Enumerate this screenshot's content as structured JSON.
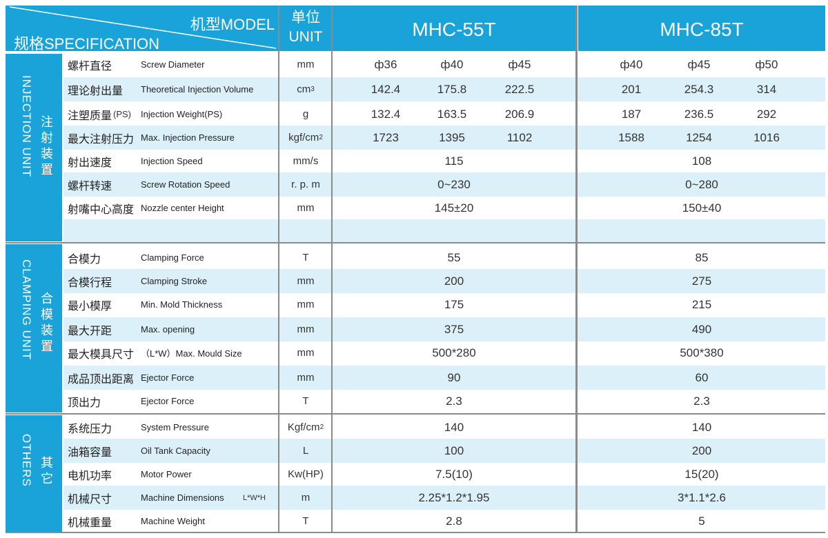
{
  "header": {
    "model_label": "机型MODEL",
    "spec_label": "规格SPECIFICATION",
    "unit_cn": "单位",
    "unit_en": "UNIT",
    "models": [
      "MHC-55T",
      "MHC-85T"
    ]
  },
  "sections": [
    {
      "cn": "注射装置",
      "en": "INJECTION UNIT"
    },
    {
      "cn": "合模装置",
      "en": "CLAMPING UNIT"
    },
    {
      "cn": "其它",
      "en": "OTHERS"
    }
  ],
  "rows": [
    {
      "cn": "螺杆直径",
      "en": "Screw  Diameter",
      "unit": "mm",
      "a": [
        "ф36",
        "ф40",
        "ф45"
      ],
      "b": [
        "ф40",
        "ф45",
        "ф50"
      ]
    },
    {
      "cn": "理论射出量",
      "en": "Theoretical  Injection  Volume",
      "unit": "cm",
      "unit_sup": "3",
      "a": [
        "142.4",
        "175.8",
        "222.5"
      ],
      "b": [
        "201",
        "254.3",
        "314"
      ]
    },
    {
      "cn": "注塑质量",
      "en": "Injection  Weight(PS)",
      "cn_suffix": "(PS)",
      "unit": "g",
      "a": [
        "132.4",
        "163.5",
        "206.9"
      ],
      "b": [
        "187",
        "236.5",
        "292"
      ]
    },
    {
      "cn": "最大注射压力",
      "en": "Max. Injection  Pressure",
      "unit": "kgf/cm",
      "unit_sup": "2",
      "a": [
        "1723",
        "1395",
        "1102"
      ],
      "b": [
        "1588",
        "1254",
        "1016"
      ]
    },
    {
      "cn": "射出速度",
      "en": "Injection  Speed",
      "unit": "mm/s",
      "a1": "115",
      "b1": "108"
    },
    {
      "cn": "螺杆转速",
      "en": "Screw  Rotation  Speed",
      "unit": "r. p. m",
      "a1": "0~230",
      "b1": "0~280"
    },
    {
      "cn": "射嘴中心高度",
      "en": "Nozzle center Height",
      "unit": "mm",
      "a1": "145±20",
      "b1": "150±40"
    },
    {
      "cn": "",
      "en": "",
      "unit": "",
      "a1": "",
      "b1": ""
    },
    {
      "cn": "合模力",
      "en": "Clamping Force",
      "unit": "T",
      "a1": "55",
      "b1": "85"
    },
    {
      "cn": "合模行程",
      "en": "Clamping Stroke",
      "unit": "mm",
      "a1": "200",
      "b1": "275"
    },
    {
      "cn": "最小模厚",
      "en": "Min. Mold Thickness",
      "unit": "mm",
      "a1": "175",
      "b1": "215"
    },
    {
      "cn": "最大开距",
      "en": "Max. opening",
      "unit": "mm",
      "a1": "375",
      "b1": "490"
    },
    {
      "cn": "最大模具尺寸",
      "en": "（L*W）Max. Mould Size",
      "unit": "mm",
      "a1": "500*280",
      "b1": "500*380"
    },
    {
      "cn": "成品顶出距离",
      "en": "Ejector  Force",
      "unit": "mm",
      "a1": "90",
      "b1": "60"
    },
    {
      "cn": "顶出力",
      "en": "Ejector  Force",
      "unit": "T",
      "a1": "2.3",
      "b1": "2.3"
    },
    {
      "cn": "系统压力",
      "en": "System  Pressure",
      "unit": "Kgf/cm",
      "unit_sup": "2",
      "a1": "140",
      "b1": "140"
    },
    {
      "cn": "油箱容量",
      "en": "Oil  Tank Capacity",
      "unit": "L",
      "a1": "100",
      "b1": "200"
    },
    {
      "cn": "电机功率",
      "en": "Motor  Power",
      "unit": "Kw(HP)",
      "a1": "7.5(10)",
      "b1": "15(20)"
    },
    {
      "cn": "机械尺寸",
      "en": "Machine Dimensions",
      "en_suffix": "L*W*H",
      "unit": "m",
      "a1": "2.25*1.2*1.95",
      "b1": "3*1.1*2.6"
    },
    {
      "cn": "机械重量",
      "en": "Machine Weight",
      "unit": "T",
      "a1": "2.8",
      "b1": "5"
    }
  ],
  "colors": {
    "accent": "#1aa3d9",
    "alt_row": "#dcf0fa"
  }
}
